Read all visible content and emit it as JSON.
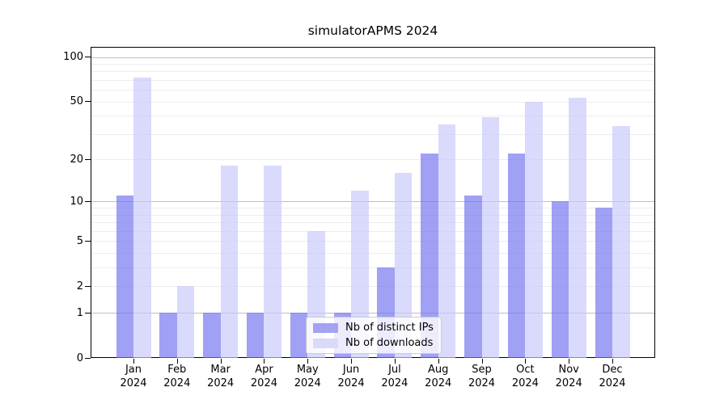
{
  "chart_data": {
    "type": "bar",
    "title": "simulatorAPMS 2024",
    "categories": [
      "Jan 2024",
      "Feb 2024",
      "Mar 2024",
      "Apr 2024",
      "May 2024",
      "Jun 2024",
      "Jul 2024",
      "Aug 2024",
      "Sep 2024",
      "Oct 2024",
      "Nov 2024",
      "Dec 2024"
    ],
    "series": [
      {
        "name": "Nb of distinct IPs",
        "color": "#a3a3f0",
        "fill": "rgba(115,115,240,0.68)",
        "values": [
          11,
          1,
          1,
          1,
          1,
          1,
          3,
          22,
          11,
          22,
          10,
          9
        ]
      },
      {
        "name": "Nb of downloads",
        "color": "#d9d9fa",
        "fill": "rgba(200,200,250,0.68)",
        "values": [
          73,
          2,
          18,
          18,
          6,
          12,
          16,
          35,
          39,
          50,
          53,
          34
        ]
      }
    ],
    "xlabel": "",
    "ylabel": "",
    "yscale": "log1p",
    "ylim": [
      0,
      117
    ],
    "ytick_values": [
      0,
      1,
      2,
      5,
      10,
      20,
      50,
      100
    ],
    "ytick_labels": [
      "0",
      "1",
      "2",
      "5",
      "10",
      "20",
      "50",
      "100"
    ],
    "minor_gridlines": [
      2,
      3,
      4,
      5,
      6,
      7,
      8,
      9,
      20,
      30,
      40,
      50,
      60,
      70,
      80,
      90
    ],
    "major_gridlines": [
      1,
      10,
      100
    ],
    "grid": "horizontal",
    "legend_position": "lower center"
  }
}
